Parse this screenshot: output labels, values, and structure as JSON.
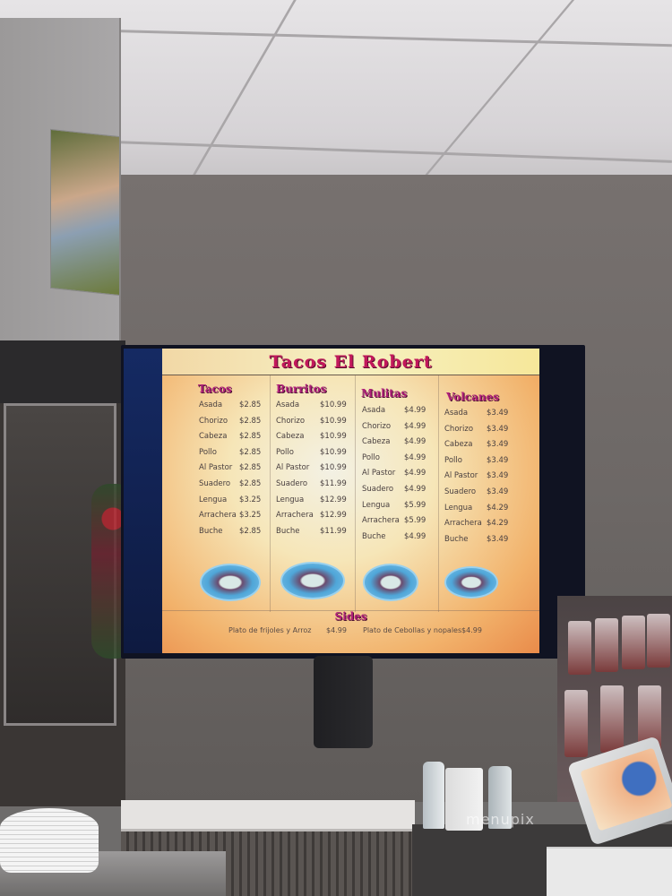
{
  "menu": {
    "title": "Tacos El Robert",
    "sections": [
      {
        "name": "Tacos",
        "items": [
          {
            "name": "Asada",
            "price": "$2.85"
          },
          {
            "name": "Chorizo",
            "price": "$2.85"
          },
          {
            "name": "Cabeza",
            "price": "$2.85"
          },
          {
            "name": "Pollo",
            "price": "$2.85"
          },
          {
            "name": "Al Pastor",
            "price": "$2.85"
          },
          {
            "name": "Suadero",
            "price": "$2.85"
          },
          {
            "name": "Lengua",
            "price": "$3.25"
          },
          {
            "name": "Arrachera",
            "price": "$3.25"
          },
          {
            "name": "Buche",
            "price": "$2.85"
          }
        ]
      },
      {
        "name": "Burritos",
        "items": [
          {
            "name": "Asada",
            "price": "$10.99"
          },
          {
            "name": "Chorizo",
            "price": "$10.99"
          },
          {
            "name": "Cabeza",
            "price": "$10.99"
          },
          {
            "name": "Pollo",
            "price": "$10.99"
          },
          {
            "name": "Al Pastor",
            "price": "$10.99"
          },
          {
            "name": "Suadero",
            "price": "$11.99"
          },
          {
            "name": "Lengua",
            "price": "$12.99"
          },
          {
            "name": "Arrachera",
            "price": "$12.99"
          },
          {
            "name": "Buche",
            "price": "$11.99"
          }
        ]
      },
      {
        "name": "Mulitas",
        "items": [
          {
            "name": "Asada",
            "price": "$4.99"
          },
          {
            "name": "Chorizo",
            "price": "$4.99"
          },
          {
            "name": "Cabeza",
            "price": "$4.99"
          },
          {
            "name": "Pollo",
            "price": "$4.99"
          },
          {
            "name": "Al Pastor",
            "price": "$4.99"
          },
          {
            "name": "Suadero",
            "price": "$4.99"
          },
          {
            "name": "Lengua",
            "price": "$5.99"
          },
          {
            "name": "Arrachera",
            "price": "$5.99"
          },
          {
            "name": "Buche",
            "price": "$4.99"
          }
        ]
      },
      {
        "name": "Volcanes",
        "items": [
          {
            "name": "Asada",
            "price": "$3.49"
          },
          {
            "name": "Chorizo",
            "price": "$3.49"
          },
          {
            "name": "Cabeza",
            "price": "$3.49"
          },
          {
            "name": "Pollo",
            "price": "$3.49"
          },
          {
            "name": "Al Pastor",
            "price": "$3.49"
          },
          {
            "name": "Suadero",
            "price": "$3.49"
          },
          {
            "name": "Lengua",
            "price": "$4.29"
          },
          {
            "name": "Arrachera",
            "price": "$4.29"
          },
          {
            "name": "Buche",
            "price": "$3.49"
          }
        ]
      }
    ],
    "sides": {
      "title": "Sides",
      "items": [
        {
          "name": "Plato de frijoles y Arroz",
          "price": "$4.99"
        },
        {
          "name": "Plato de Cebollas y nopales",
          "price": "$4.99"
        }
      ]
    },
    "colors": {
      "heading": "#b0207a",
      "title": "#c2185b"
    }
  },
  "watermark": "menupix"
}
